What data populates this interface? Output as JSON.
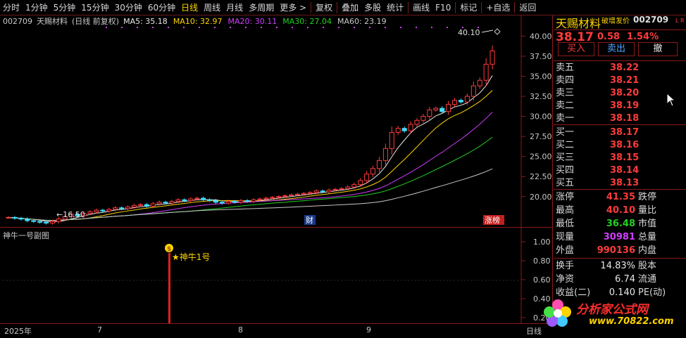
{
  "toolbar": {
    "items": [
      "分时",
      "1分钟",
      "5分钟",
      "15分钟",
      "30分钟",
      "60分钟",
      "日线",
      "周线",
      "月线",
      "多周期",
      "更多 >",
      "复权",
      "叠加",
      "多股",
      "统计",
      "画线",
      "F10",
      "标记",
      "+自选",
      "返回"
    ],
    "active": "日线"
  },
  "main": {
    "code": "002709",
    "name": "天赐材料",
    "mode": "(日线 前复权)",
    "ma": [
      {
        "label": "MA5: 35.18",
        "color": "#e8e8e8"
      },
      {
        "label": "MA10: 32.97",
        "color": "#ffd400"
      },
      {
        "label": "MA20: 30.11",
        "color": "#d23cff"
      },
      {
        "label": "MA30: 27.04",
        "color": "#22d022"
      },
      {
        "label": "MA60: 23.19",
        "color": "#c8c8c8"
      }
    ],
    "yticks": [
      "40.00",
      "37.50",
      "35.00",
      "32.50",
      "30.00",
      "27.50",
      "25.00",
      "22.50",
      "20.00"
    ],
    "high_label": "40.10",
    "low_label": "←16.50",
    "event_labels": [
      "财",
      "涨榜"
    ]
  },
  "sub": {
    "title": "神牛一号副图",
    "signal_label": "★神牛1号",
    "yticks": [
      "1.00",
      "0.80",
      "0.60",
      "0.40",
      "0.20"
    ]
  },
  "date_axis": {
    "labels": [
      "2025年",
      "7",
      "8",
      "9"
    ],
    "corner": "日线"
  },
  "quote": {
    "name": "天赐材料",
    "tag": "破增发价",
    "code": "002709",
    "price": "38.17",
    "change": "0.58",
    "change_pct": "1.54%",
    "buy_btn": "买入",
    "sell_btn": "卖出",
    "cancel_btn": "撤",
    "asks": [
      {
        "label": "卖五",
        "price": "38.22"
      },
      {
        "label": "卖四",
        "price": "38.21"
      },
      {
        "label": "卖三",
        "price": "38.20"
      },
      {
        "label": "卖二",
        "price": "38.19"
      },
      {
        "label": "卖一",
        "price": "38.18"
      }
    ],
    "bids": [
      {
        "label": "买一",
        "price": "38.17"
      },
      {
        "label": "买二",
        "price": "38.16"
      },
      {
        "label": "买三",
        "price": "38.15"
      },
      {
        "label": "买四",
        "price": "38.14"
      },
      {
        "label": "买五",
        "price": "38.13"
      }
    ],
    "stats": [
      {
        "label": "涨停",
        "value": "41.35",
        "label2": "跌停",
        "color": "red"
      },
      {
        "label": "最高",
        "value": "40.10",
        "label2": "量比",
        "color": "red"
      },
      {
        "label": "最低",
        "value": "36.48",
        "label2": "市值",
        "color": "green"
      },
      {
        "label": "现量",
        "value": "30981",
        "label2": "总量",
        "color": "purple"
      },
      {
        "label": "外盘",
        "value": "990136",
        "label2": "内盘",
        "color": "red"
      }
    ],
    "stats2": [
      {
        "label": "换手",
        "value": "14.83%",
        "label2": "股本"
      },
      {
        "label": "净资",
        "value": "6.74",
        "label2": "流通"
      },
      {
        "label": "收益(二)",
        "value": "0.140",
        "label2": "PE(动)"
      }
    ]
  },
  "watermark": {
    "title": "分析家公式网",
    "url": "www.70822.com"
  },
  "chart_data": {
    "type": "candlestick",
    "ylim": [
      17,
      41
    ],
    "closes": [
      17.4,
      17.3,
      17.2,
      17.0,
      16.9,
      16.8,
      16.7,
      16.9,
      17.2,
      17.5,
      17.8,
      17.6,
      17.9,
      18.1,
      18.3,
      18.2,
      18.4,
      18.6,
      18.5,
      18.7,
      18.9,
      19.0,
      18.8,
      19.1,
      19.3,
      19.2,
      19.4,
      19.6,
      19.5,
      19.7,
      19.8,
      19.6,
      19.5,
      19.3,
      19.2,
      19.4,
      19.3,
      19.5,
      19.4,
      19.6,
      19.7,
      19.8,
      19.9,
      20.0,
      20.1,
      20.2,
      20.3,
      20.4,
      20.5,
      20.7,
      20.6,
      20.8,
      20.9,
      21.0,
      21.2,
      21.5,
      22.0,
      22.8,
      23.5,
      24.5,
      26.0,
      28.0,
      28.5,
      28.2,
      29.0,
      29.5,
      30.0,
      30.8,
      31.0,
      30.6,
      31.5,
      32.0,
      31.8,
      32.5,
      33.8,
      34.5,
      36.5,
      38.17
    ],
    "ma_values": {
      "MA5": 35.18,
      "MA10": 32.97,
      "MA20": 30.11,
      "MA30": 27.04,
      "MA60": 23.19
    },
    "high": 40.1,
    "low": 16.5
  }
}
